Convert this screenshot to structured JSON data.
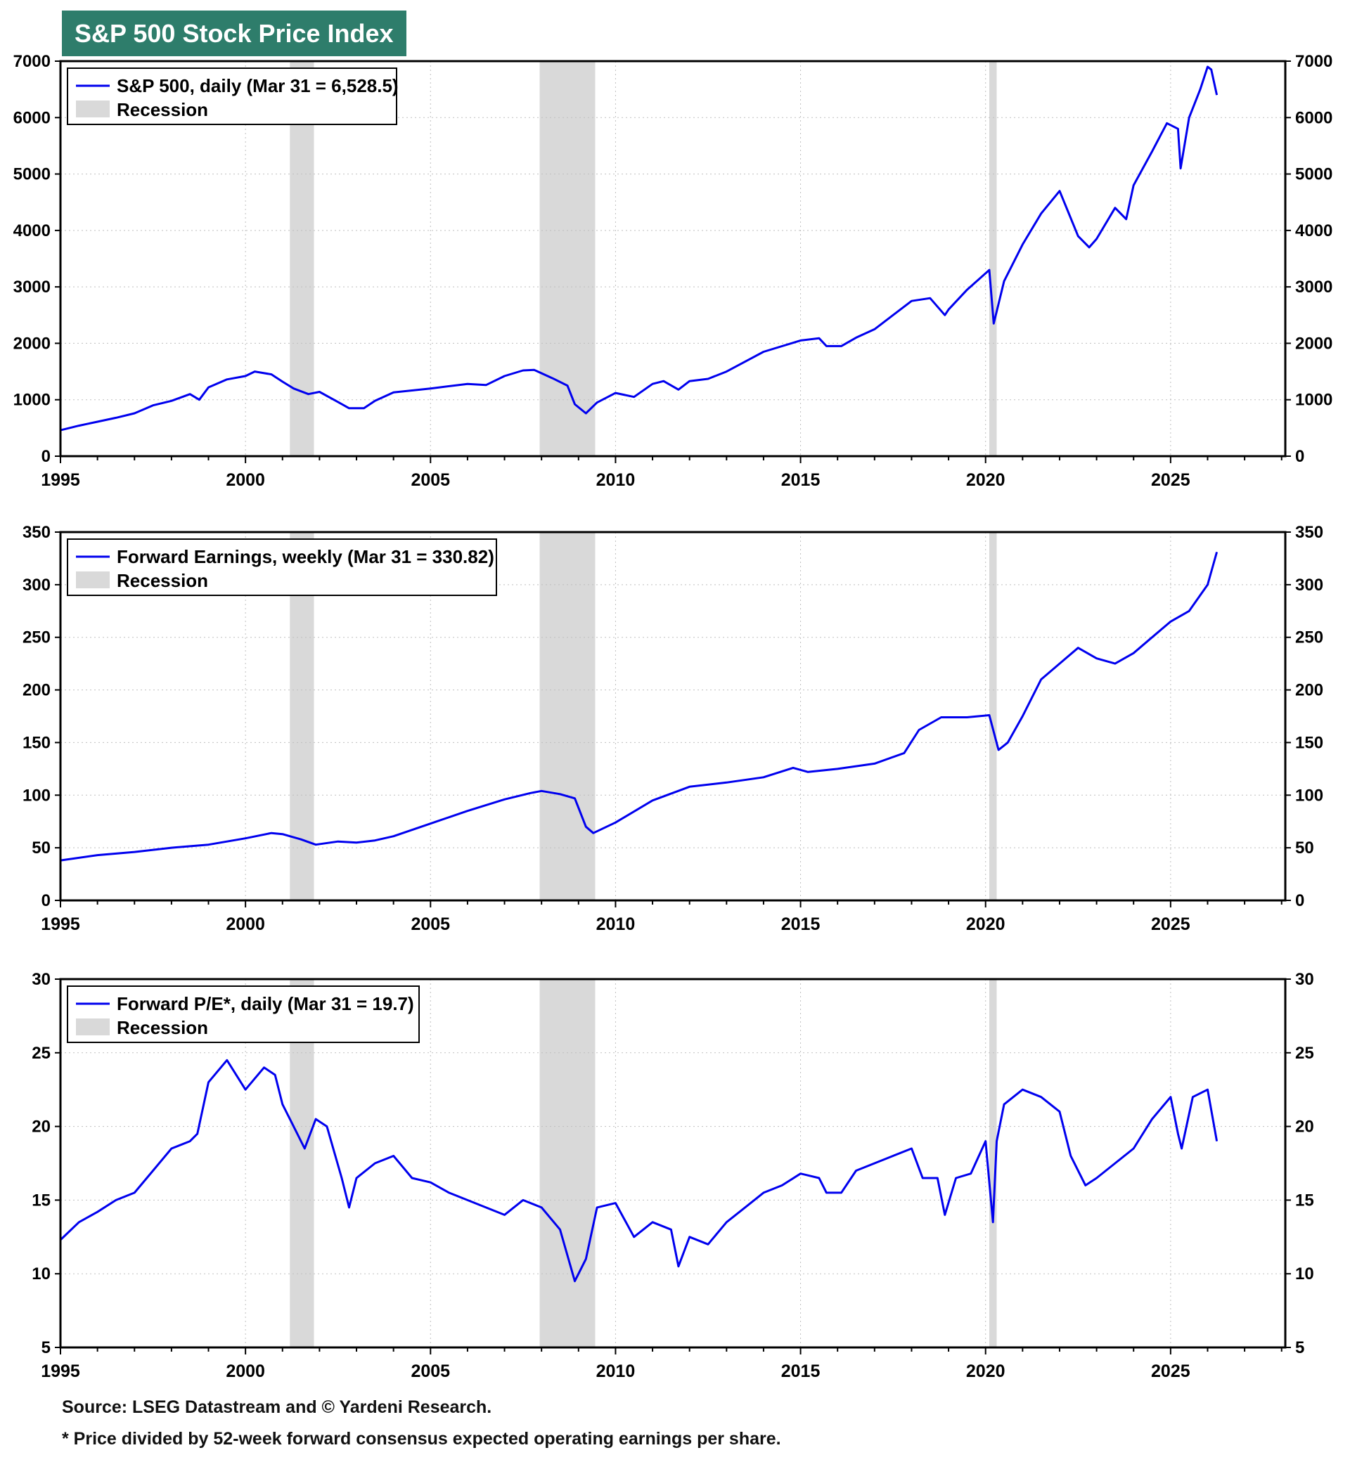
{
  "title": "S&P 500 Stock Price Index",
  "footer": {
    "source": "Source: LSEG Datastream and © Yardeni Research.",
    "note": "* Price divided by 52-week forward consensus expected operating earnings per share."
  },
  "colors": {
    "line": "#0000ee",
    "recession": "#d9d9d9",
    "title_bg": "#2e7d6b"
  },
  "chart_data": [
    {
      "type": "line",
      "name": "sp500",
      "legend": [
        "S&P 500, daily (Mar 31 = 6,528.5)",
        "Recession"
      ],
      "xlim": [
        1995,
        2028.1
      ],
      "xticks": [
        "1995",
        "2000",
        "2005",
        "2010",
        "2015",
        "2020",
        "2025"
      ],
      "ylim": [
        0,
        7000
      ],
      "yticks": [
        "0",
        "1000",
        "2000",
        "3000",
        "4000",
        "5000",
        "6000",
        "7000"
      ],
      "recessions": [
        [
          2001.2,
          2001.85
        ],
        [
          2007.95,
          2009.45
        ],
        [
          2020.1,
          2020.3
        ]
      ],
      "x": [
        1995.0,
        1995.5,
        1996.0,
        1996.5,
        1997.0,
        1997.5,
        1998.0,
        1998.5,
        1998.75,
        1999.0,
        1999.5,
        2000.0,
        2000.25,
        2000.7,
        2001.0,
        2001.3,
        2001.7,
        2002.0,
        2002.5,
        2002.8,
        2003.2,
        2003.5,
        2004.0,
        2005.0,
        2006.0,
        2006.5,
        2007.0,
        2007.5,
        2007.8,
        2008.3,
        2008.7,
        2008.9,
        2009.2,
        2009.5,
        2010.0,
        2010.5,
        2011.0,
        2011.3,
        2011.7,
        2012.0,
        2012.5,
        2013.0,
        2014.0,
        2015.0,
        2015.5,
        2015.7,
        2016.1,
        2016.5,
        2017.0,
        2018.0,
        2018.5,
        2018.9,
        2019.0,
        2019.5,
        2020.1,
        2020.22,
        2020.5,
        2021.0,
        2021.5,
        2022.0,
        2022.5,
        2022.8,
        2023.0,
        2023.5,
        2023.8,
        2024.0,
        2024.5,
        2024.9,
        2025.2,
        2025.27,
        2025.5,
        2025.8,
        2026.0,
        2026.1,
        2026.25
      ],
      "y": [
        460,
        540,
        610,
        680,
        760,
        900,
        980,
        1100,
        1000,
        1220,
        1360,
        1420,
        1500,
        1450,
        1320,
        1200,
        1100,
        1140,
        960,
        850,
        850,
        980,
        1130,
        1200,
        1280,
        1260,
        1420,
        1520,
        1530,
        1380,
        1250,
        920,
        760,
        950,
        1120,
        1050,
        1280,
        1330,
        1180,
        1330,
        1370,
        1500,
        1850,
        2050,
        2090,
        1950,
        1950,
        2100,
        2250,
        2750,
        2800,
        2500,
        2600,
        2950,
        3300,
        2350,
        3100,
        3750,
        4300,
        4700,
        3900,
        3700,
        3850,
        4400,
        4200,
        4800,
        5400,
        5900,
        5800,
        5100,
        6000,
        6500,
        6900,
        6850,
        6400
      ]
    },
    {
      "type": "line",
      "name": "forward-earnings",
      "legend": [
        "Forward Earnings, weekly (Mar 31 = 330.82)",
        "Recession"
      ],
      "xlim": [
        1995,
        2028.1
      ],
      "xticks": [
        "1995",
        "2000",
        "2005",
        "2010",
        "2015",
        "2020",
        "2025"
      ],
      "ylim": [
        0,
        350
      ],
      "yticks": [
        "0",
        "50",
        "100",
        "150",
        "200",
        "250",
        "300",
        "350"
      ],
      "recessions": [
        [
          2001.2,
          2001.85
        ],
        [
          2007.95,
          2009.45
        ],
        [
          2020.1,
          2020.3
        ]
      ],
      "x": [
        1995.0,
        1996.0,
        1997.0,
        1998.0,
        1999.0,
        2000.0,
        2000.7,
        2001.0,
        2001.5,
        2001.9,
        2002.5,
        2003.0,
        2003.5,
        2004.0,
        2005.0,
        2006.0,
        2007.0,
        2007.7,
        2008.0,
        2008.5,
        2008.9,
        2009.2,
        2009.4,
        2010.0,
        2011.0,
        2012.0,
        2013.0,
        2014.0,
        2014.8,
        2015.2,
        2016.0,
        2017.0,
        2017.8,
        2018.2,
        2018.8,
        2019.5,
        2020.1,
        2020.35,
        2020.6,
        2021.0,
        2021.5,
        2022.0,
        2022.5,
        2023.0,
        2023.5,
        2024.0,
        2024.5,
        2025.0,
        2025.5,
        2026.0,
        2026.25
      ],
      "y": [
        38,
        43,
        46,
        50,
        53,
        59,
        64,
        63,
        58,
        53,
        56,
        55,
        57,
        61,
        73,
        85,
        96,
        102,
        104,
        101,
        97,
        70,
        64,
        74,
        95,
        108,
        112,
        117,
        126,
        122,
        125,
        130,
        140,
        162,
        174,
        174,
        176,
        143,
        150,
        175,
        210,
        225,
        240,
        230,
        225,
        235,
        250,
        265,
        275,
        300,
        331
      ]
    },
    {
      "type": "line",
      "name": "forward-pe",
      "legend": [
        "Forward P/E*, daily (Mar 31 = 19.7)",
        "Recession"
      ],
      "xlim": [
        1995,
        2028.1
      ],
      "xticks": [
        "1995",
        "2000",
        "2005",
        "2010",
        "2015",
        "2020",
        "2025"
      ],
      "ylim": [
        5,
        30
      ],
      "yticks": [
        "5",
        "10",
        "15",
        "20",
        "25",
        "30"
      ],
      "recessions": [
        [
          2001.2,
          2001.85
        ],
        [
          2007.95,
          2009.45
        ],
        [
          2020.1,
          2020.3
        ]
      ],
      "x": [
        1995.0,
        1995.5,
        1996.0,
        1996.5,
        1997.0,
        1997.5,
        1998.0,
        1998.5,
        1998.7,
        1999.0,
        1999.5,
        2000.0,
        2000.5,
        2000.8,
        2001.0,
        2001.3,
        2001.6,
        2001.9,
        2002.2,
        2002.6,
        2002.8,
        2003.0,
        2003.5,
        2004.0,
        2004.5,
        2005.0,
        2005.5,
        2006.0,
        2006.5,
        2007.0,
        2007.5,
        2008.0,
        2008.5,
        2008.9,
        2009.2,
        2009.5,
        2010.0,
        2010.5,
        2011.0,
        2011.5,
        2011.7,
        2012.0,
        2012.5,
        2013.0,
        2013.5,
        2014.0,
        2014.5,
        2015.0,
        2015.5,
        2015.7,
        2016.1,
        2016.5,
        2017.0,
        2017.5,
        2018.0,
        2018.3,
        2018.7,
        2018.9,
        2019.2,
        2019.6,
        2020.0,
        2020.2,
        2020.3,
        2020.5,
        2021.0,
        2021.5,
        2022.0,
        2022.3,
        2022.7,
        2023.0,
        2023.5,
        2024.0,
        2024.5,
        2025.0,
        2025.2,
        2025.3,
        2025.6,
        2026.0,
        2026.25
      ],
      "y": [
        12.3,
        13.5,
        14.2,
        15.0,
        15.5,
        17.0,
        18.5,
        19.0,
        19.5,
        23.0,
        24.5,
        22.5,
        24.0,
        23.5,
        21.5,
        20.0,
        18.5,
        20.5,
        20.0,
        16.5,
        14.5,
        16.5,
        17.5,
        18.0,
        16.5,
        16.2,
        15.5,
        15.0,
        14.5,
        14.0,
        15.0,
        14.5,
        13.0,
        9.5,
        11.0,
        14.5,
        14.8,
        12.5,
        13.5,
        13.0,
        10.5,
        12.5,
        12.0,
        13.5,
        14.5,
        15.5,
        16.0,
        16.8,
        16.5,
        15.5,
        15.5,
        17.0,
        17.5,
        18.0,
        18.5,
        16.5,
        16.5,
        14.0,
        16.5,
        16.8,
        19.0,
        13.5,
        19.0,
        21.5,
        22.5,
        22.0,
        21.0,
        18.0,
        16.0,
        16.5,
        17.5,
        18.5,
        20.5,
        22.0,
        19.5,
        18.5,
        22.0,
        22.5,
        19.0
      ]
    }
  ]
}
